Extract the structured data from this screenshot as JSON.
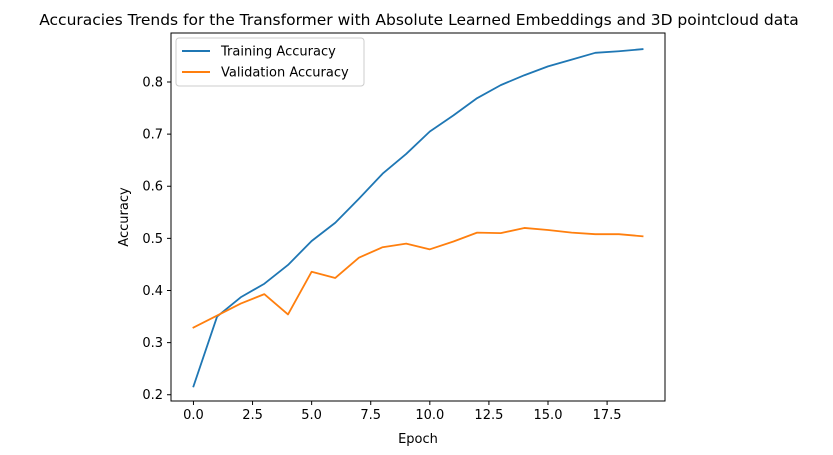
{
  "chart_data": {
    "type": "line",
    "title": "Accuracies Trends for the Transformer with Absolute Learned Embeddings and 3D pointcloud data",
    "xlabel": "Epoch",
    "ylabel": "Accuracy",
    "xlim": [
      -0.95,
      19.95
    ],
    "ylim": [
      0.188,
      0.894
    ],
    "xticks": [
      0.0,
      2.5,
      5.0,
      7.5,
      10.0,
      12.5,
      15.0,
      17.5
    ],
    "xtick_labels": [
      "0.0",
      "2.5",
      "5.0",
      "7.5",
      "10.0",
      "12.5",
      "15.0",
      "17.5"
    ],
    "yticks": [
      0.2,
      0.3,
      0.4,
      0.5,
      0.6,
      0.7,
      0.8
    ],
    "ytick_labels": [
      "0.2",
      "0.3",
      "0.4",
      "0.5",
      "0.6",
      "0.7",
      "0.8"
    ],
    "grid": false,
    "legend_position": "top-left",
    "x": [
      0,
      1,
      2,
      3,
      4,
      5,
      6,
      7,
      8,
      9,
      10,
      11,
      12,
      13,
      14,
      15,
      16,
      17,
      18,
      19
    ],
    "series": [
      {
        "name": "Training Accuracy",
        "color": "#1f77b4",
        "values": [
          0.216,
          0.35,
          0.387,
          0.413,
          0.449,
          0.495,
          0.53,
          0.576,
          0.624,
          0.662,
          0.705,
          0.736,
          0.769,
          0.794,
          0.813,
          0.83,
          0.843,
          0.856,
          0.859,
          0.863
        ]
      },
      {
        "name": "Validation Accuracy",
        "color": "#ff7f0e",
        "values": [
          0.329,
          0.352,
          0.375,
          0.393,
          0.354,
          0.436,
          0.424,
          0.463,
          0.483,
          0.49,
          0.479,
          0.494,
          0.511,
          0.51,
          0.52,
          0.516,
          0.511,
          0.508,
          0.508,
          0.504
        ]
      }
    ]
  }
}
